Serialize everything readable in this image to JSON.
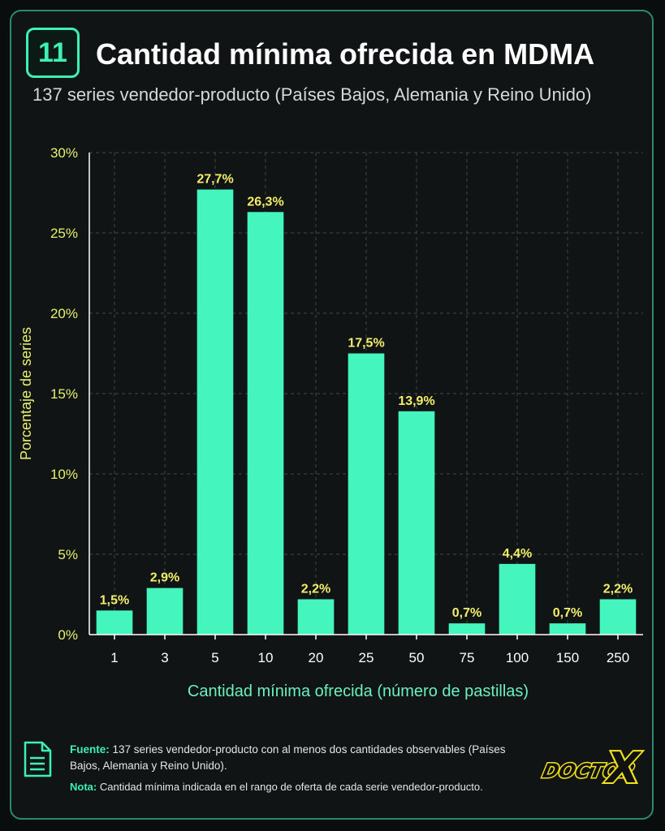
{
  "header": {
    "badge": "11",
    "title": "Cantidad mínima ofrecida en MDMA",
    "subtitle": "137 series vendedor-producto (Países Bajos, Alemania y Reino Unido)"
  },
  "chart_data": {
    "type": "bar",
    "categories": [
      "1",
      "3",
      "5",
      "10",
      "20",
      "25",
      "50",
      "75",
      "100",
      "150",
      "250"
    ],
    "values": [
      1.5,
      2.9,
      27.7,
      26.3,
      2.2,
      17.5,
      13.9,
      0.7,
      4.4,
      0.7,
      2.2
    ],
    "value_labels": [
      "1,5%",
      "2,9%",
      "27,7%",
      "26,3%",
      "2,2%",
      "17,5%",
      "13,9%",
      "0,7%",
      "4,4%",
      "0,7%",
      "2,2%"
    ],
    "xlabel": "Cantidad mínima ofrecida (número de pastillas)",
    "ylabel": "Porcentaje de series",
    "ylim": [
      0,
      30
    ],
    "yticks": [
      0,
      5,
      10,
      15,
      20,
      25,
      30
    ],
    "ytick_labels": [
      "0%",
      "5%",
      "10%",
      "15%",
      "20%",
      "25%",
      "30%"
    ],
    "grid": true,
    "colors": {
      "bar": "#44f5bd",
      "value_label": "#f3ee6a",
      "axis_text": "#e8f070",
      "xlabel": "#6cf0c0",
      "grid": "#3a4a44"
    }
  },
  "footer": {
    "source_label": "Fuente:",
    "source_text": "137 series vendedor-producto con al menos dos cantidades observables (Países Bajos, Alemania y Reino Unido).",
    "note_label": "Nota:",
    "note_text": "Cantidad mínima indicada en el rango de oferta de cada serie vendedor-producto."
  },
  "logo": {
    "text": "DOCTOR X",
    "icon": "doctor-x-logo"
  },
  "icons": {
    "footer_icon": "document-icon"
  }
}
